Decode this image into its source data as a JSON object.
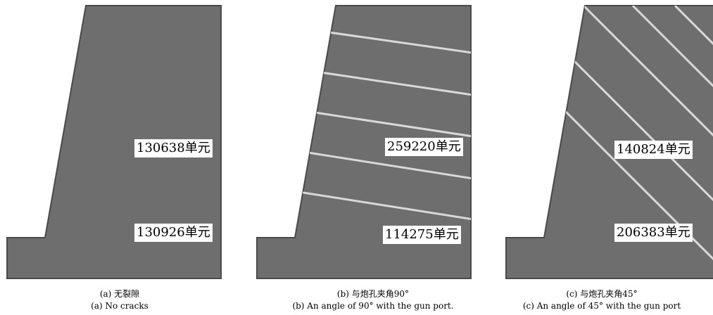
{
  "panels": [
    {
      "id": "a",
      "labels": [
        "130638单元",
        "130926单元"
      ],
      "caption_cn": "(a) 无裂隙",
      "caption_en": "(a) No cracks"
    },
    {
      "id": "b",
      "labels": [
        "259220单元",
        "114275单元"
      ],
      "caption_cn": "(b) 与炮孔夹角90°",
      "caption_en": "(b) An angle of 90°   with the gun port."
    },
    {
      "id": "c",
      "labels": [
        "140824单元",
        "206383单元"
      ],
      "caption_cn": "(c) 与炮孔夹角45°",
      "caption_en": "(c) An angle of 45°   with the gun port"
    }
  ],
  "colors": {
    "body": "#6e6e6e",
    "crack": "#d9d9d9",
    "outline": "#4a4a4a"
  }
}
